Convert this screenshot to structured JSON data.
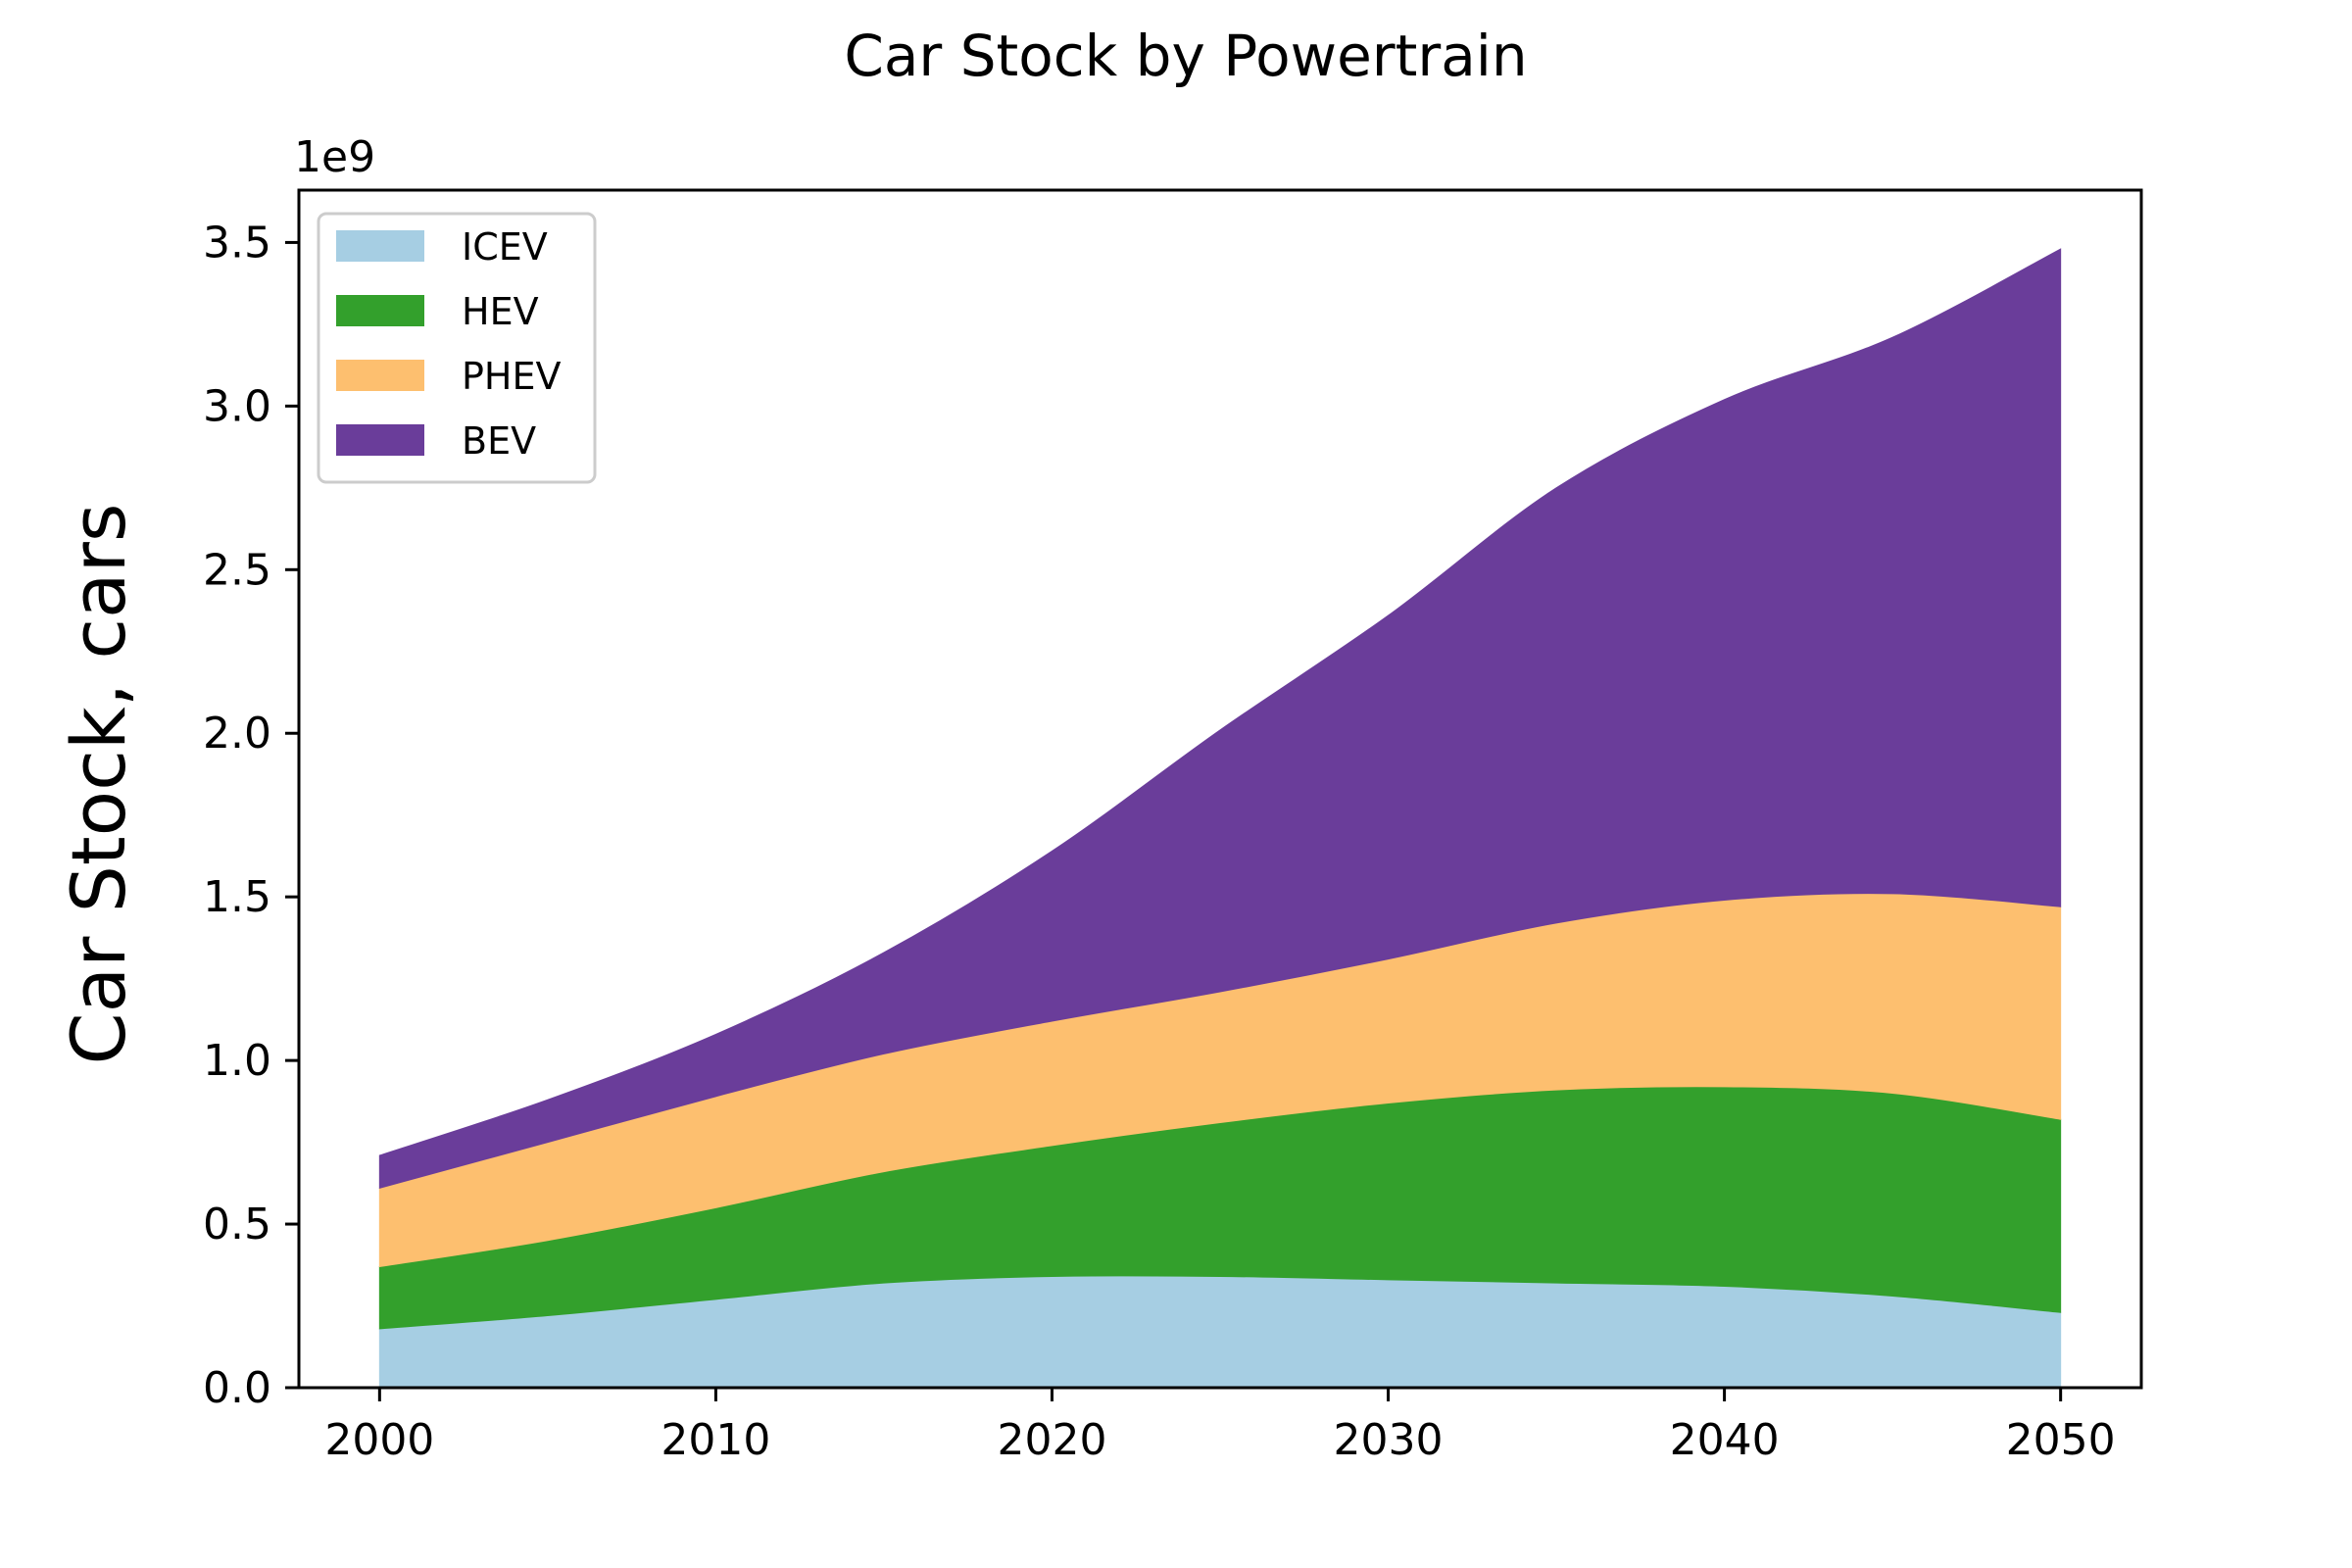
{
  "chart_data": {
    "type": "area",
    "stacked": true,
    "title": "Car Stock by Powertrain",
    "xlabel": "",
    "ylabel": "Car Stock, cars",
    "y_scale_label": "1e9",
    "xlim": [
      1997.6,
      2052.4
    ],
    "ylim": [
      0,
      3.66
    ],
    "x_ticks": [
      2000,
      2010,
      2020,
      2030,
      2040,
      2050
    ],
    "y_ticks": [
      0.0,
      0.5,
      1.0,
      1.5,
      2.0,
      2.5,
      3.0,
      3.5
    ],
    "x_tick_labels": [
      "2000",
      "2010",
      "2020",
      "2030",
      "2040",
      "2050"
    ],
    "y_tick_labels": [
      "0.0",
      "0.5",
      "1.0",
      "1.5",
      "2.0",
      "2.5",
      "3.0",
      "3.5"
    ],
    "grid": false,
    "legend_position": "top-left",
    "x": [
      2000,
      2005,
      2010,
      2015,
      2020,
      2025,
      2030,
      2035,
      2040,
      2045,
      2050
    ],
    "series": [
      {
        "name": "ICEV",
        "color": "#a6cee3",
        "values": [
          0.18,
          0.22,
          0.27,
          0.32,
          0.34,
          0.34,
          0.33,
          0.32,
          0.31,
          0.28,
          0.23
        ]
      },
      {
        "name": "HEV",
        "color": "#33a02c",
        "values": [
          0.19,
          0.23,
          0.28,
          0.34,
          0.4,
          0.47,
          0.54,
          0.59,
          0.61,
          0.62,
          0.59
        ]
      },
      {
        "name": "PHEV",
        "color": "#fdbf6f",
        "values": [
          0.24,
          0.3,
          0.34,
          0.36,
          0.38,
          0.4,
          0.44,
          0.51,
          0.57,
          0.61,
          0.65
        ]
      },
      {
        "name": "BEV",
        "color": "#6a3d9a",
        "values": [
          0.1,
          0.13,
          0.19,
          0.31,
          0.52,
          0.8,
          1.05,
          1.33,
          1.53,
          1.7,
          2.01
        ]
      }
    ]
  }
}
